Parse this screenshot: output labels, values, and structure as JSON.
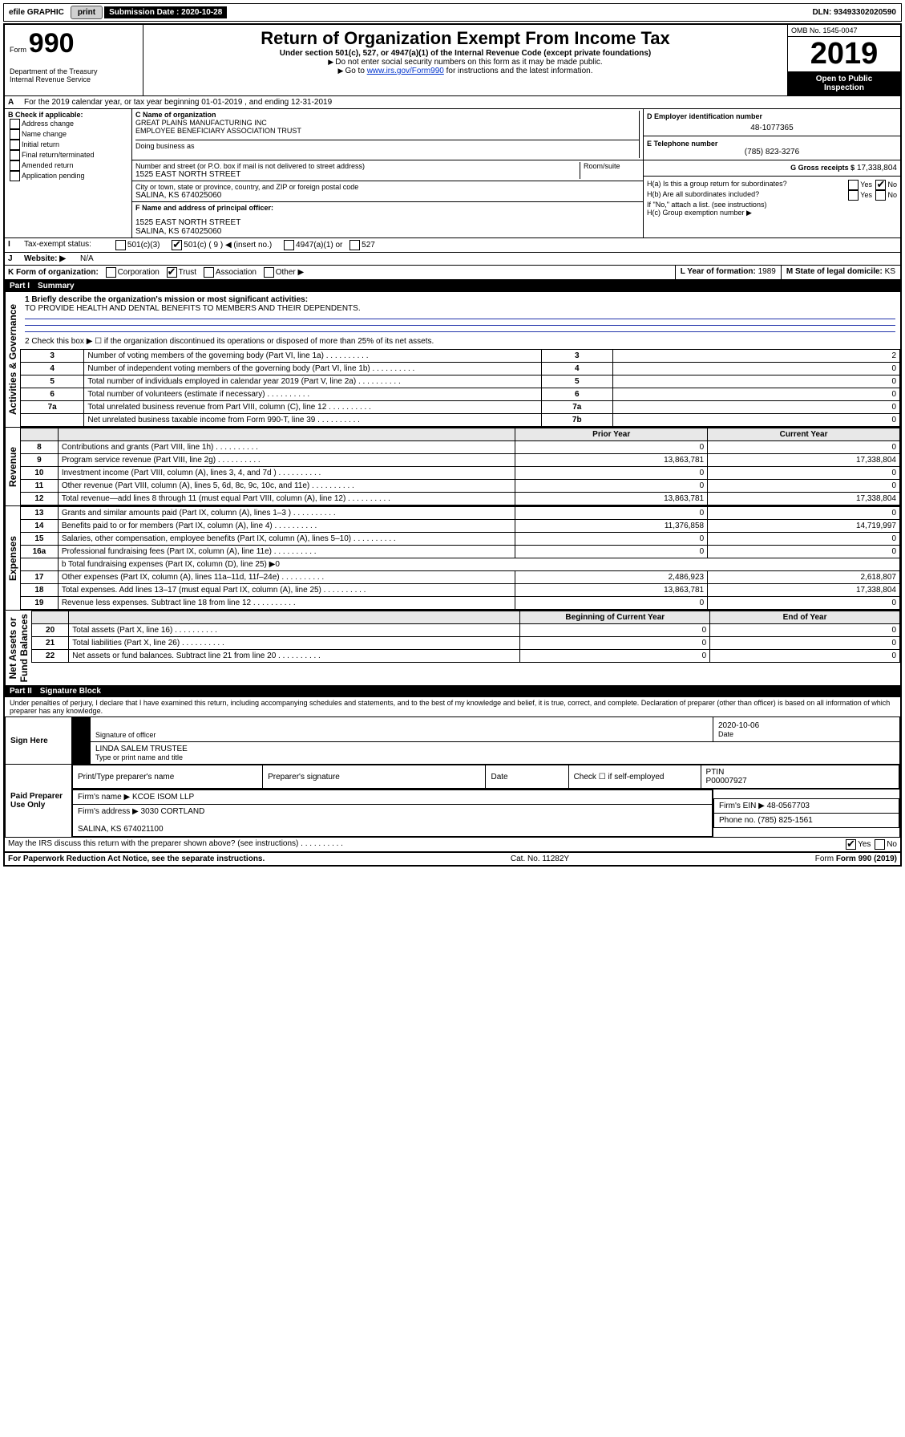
{
  "topbar": {
    "efile": "efile GRAPHIC",
    "print": "print",
    "sub_label": "Submission Date :",
    "sub_date": "2020-10-28",
    "dln_label": "DLN:",
    "dln": "93493302020590"
  },
  "header": {
    "form_label": "Form",
    "form_no": "990",
    "dept": "Department of the Treasury\nInternal Revenue Service",
    "title": "Return of Organization Exempt From Income Tax",
    "sub1": "Under section 501(c), 527, or 4947(a)(1) of the Internal Revenue Code (except private foundations)",
    "sub2": "Do not enter social security numbers on this form as it may be made public.",
    "sub3_pre": "Go to ",
    "sub3_link": "www.irs.gov/Form990",
    "sub3_post": " for instructions and the latest information.",
    "omb": "OMB No. 1545-0047",
    "year": "2019",
    "open_text": "Open to Public\nInspection"
  },
  "periodA": "For the 2019 calendar year, or tax year beginning 01-01-2019   , and ending 12-31-2019",
  "boxB": {
    "label": "B Check if applicable:",
    "opts": [
      "Address change",
      "Name change",
      "Initial return",
      "Final return/terminated",
      "Amended return",
      "Application pending"
    ]
  },
  "boxC": {
    "name_label": "C Name of organization",
    "name": "GREAT PLAINS MANUFACTURING INC\nEMPLOYEE BENEFICIARY ASSOCIATION TRUST",
    "dba_label": "Doing business as",
    "street_label": "Number and street (or P.O. box if mail is not delivered to street address)",
    "room_label": "Room/suite",
    "street": "1525 EAST NORTH STREET",
    "city_label": "City or town, state or province, country, and ZIP or foreign postal code",
    "city": "SALINA, KS  674025060",
    "f_label": "F Name and address of principal officer:",
    "f_addr": "1525 EAST NORTH STREET\nSALINA, KS  674025060"
  },
  "boxD": {
    "label": "D Employer identification number",
    "ein": "48-1077365"
  },
  "boxE": {
    "label": "E Telephone number",
    "phone": "(785) 823-3276"
  },
  "boxG": {
    "label": "G Gross receipts $",
    "amount": "17,338,804"
  },
  "boxH": {
    "a_label": "H(a)  Is this a group return for subordinates?",
    "b_label": "H(b)  Are all subordinates included?",
    "b_note": "If \"No,\" attach a list. (see instructions)",
    "c_label": "H(c)  Group exemption number ▶"
  },
  "lineI": {
    "label": "Tax-exempt status:",
    "opts": [
      "501(c)(3)",
      "501(c) ( 9 ) ◀ (insert no.)",
      "4947(a)(1) or",
      "527"
    ],
    "checked_index": 1
  },
  "lineJ": {
    "label": "Website: ▶",
    "value": "N/A"
  },
  "lineK": {
    "label": "K Form of organization:",
    "opts": [
      "Corporation",
      "Trust",
      "Association",
      "Other ▶"
    ],
    "checked_index": 1
  },
  "lineL": {
    "label": "L Year of formation:",
    "value": "1989"
  },
  "lineM": {
    "label": "M State of legal domicile:",
    "value": "KS"
  },
  "part1": {
    "header_no": "Part I",
    "header_title": "Summary",
    "q1_label": "1  Briefly describe the organization's mission or most significant activities:",
    "q1_text": "TO PROVIDE HEALTH AND DENTAL BENEFITS TO MEMBERS AND THEIR DEPENDENTS.",
    "q2": "2   Check this box ▶ ☐  if the organization discontinued its operations or disposed of more than 25% of its net assets.",
    "gov_rows": [
      {
        "n": "3",
        "t": "Number of voting members of the governing body (Part VI, line 1a)",
        "box": "3",
        "v": "2"
      },
      {
        "n": "4",
        "t": "Number of independent voting members of the governing body (Part VI, line 1b)",
        "box": "4",
        "v": "0"
      },
      {
        "n": "5",
        "t": "Total number of individuals employed in calendar year 2019 (Part V, line 2a)",
        "box": "5",
        "v": "0"
      },
      {
        "n": "6",
        "t": "Total number of volunteers (estimate if necessary)",
        "box": "6",
        "v": "0"
      },
      {
        "n": "7a",
        "t": "Total unrelated business revenue from Part VIII, column (C), line 12",
        "box": "7a",
        "v": "0"
      },
      {
        "n": "",
        "t": "Net unrelated business taxable income from Form 990-T, line 39",
        "box": "7b",
        "v": "0"
      }
    ],
    "col_headers": {
      "prior": "Prior Year",
      "current": "Current Year"
    },
    "revenue_rows": [
      {
        "n": "8",
        "t": "Contributions and grants (Part VIII, line 1h)",
        "p": "0",
        "c": "0"
      },
      {
        "n": "9",
        "t": "Program service revenue (Part VIII, line 2g)",
        "p": "13,863,781",
        "c": "17,338,804"
      },
      {
        "n": "10",
        "t": "Investment income (Part VIII, column (A), lines 3, 4, and 7d )",
        "p": "0",
        "c": "0"
      },
      {
        "n": "11",
        "t": "Other revenue (Part VIII, column (A), lines 5, 6d, 8c, 9c, 10c, and 11e)",
        "p": "0",
        "c": "0"
      },
      {
        "n": "12",
        "t": "Total revenue—add lines 8 through 11 (must equal Part VIII, column (A), line 12)",
        "p": "13,863,781",
        "c": "17,338,804"
      }
    ],
    "expense_rows": [
      {
        "n": "13",
        "t": "Grants and similar amounts paid (Part IX, column (A), lines 1–3 )",
        "p": "0",
        "c": "0"
      },
      {
        "n": "14",
        "t": "Benefits paid to or for members (Part IX, column (A), line 4)",
        "p": "11,376,858",
        "c": "14,719,997"
      },
      {
        "n": "15",
        "t": "Salaries, other compensation, employee benefits (Part IX, column (A), lines 5–10)",
        "p": "0",
        "c": "0"
      },
      {
        "n": "16a",
        "t": "Professional fundraising fees (Part IX, column (A), line 11e)",
        "p": "0",
        "c": "0"
      }
    ],
    "line16b": "b   Total fundraising expenses (Part IX, column (D), line 25) ▶0",
    "expense_rows2": [
      {
        "n": "17",
        "t": "Other expenses (Part IX, column (A), lines 11a–11d, 11f–24e)",
        "p": "2,486,923",
        "c": "2,618,807"
      },
      {
        "n": "18",
        "t": "Total expenses. Add lines 13–17 (must equal Part IX, column (A), line 25)",
        "p": "13,863,781",
        "c": "17,338,804"
      },
      {
        "n": "19",
        "t": "Revenue less expenses. Subtract line 18 from line 12",
        "p": "0",
        "c": "0"
      }
    ],
    "net_headers": {
      "beg": "Beginning of Current Year",
      "end": "End of Year"
    },
    "net_rows": [
      {
        "n": "20",
        "t": "Total assets (Part X, line 16)",
        "p": "0",
        "c": "0"
      },
      {
        "n": "21",
        "t": "Total liabilities (Part X, line 26)",
        "p": "0",
        "c": "0"
      },
      {
        "n": "22",
        "t": "Net assets or fund balances. Subtract line 21 from line 20",
        "p": "0",
        "c": "0"
      }
    ],
    "vert_labels": {
      "gov": "Activities & Governance",
      "rev": "Revenue",
      "exp": "Expenses",
      "net": "Net Assets or\nFund Balances"
    }
  },
  "part2": {
    "header_no": "Part II",
    "header_title": "Signature Block",
    "perjury": "Under penalties of perjury, I declare that I have examined this return, including accompanying schedules and statements, and to the best of my knowledge and belief, it is true, correct, and complete. Declaration of preparer (other than officer) is based on all information of which preparer has any knowledge.",
    "sign_here": "Sign Here",
    "sig_officer": "Signature of officer",
    "sig_date_label": "Date",
    "sig_date": "2020-10-06",
    "officer_name": "LINDA SALEM  TRUSTEE",
    "type_name": "Type or print name and title",
    "paid_label": "Paid Preparer Use Only",
    "prep_name_label": "Print/Type preparer's name",
    "prep_sig_label": "Preparer's signature",
    "prep_date_label": "Date",
    "check_if": "Check ☐ if self-employed",
    "ptin_label": "PTIN",
    "ptin": "P00007927",
    "firm_name_label": "Firm's name    ▶",
    "firm_name": "KCOE ISOM LLP",
    "firm_ein_label": "Firm's EIN ▶",
    "firm_ein": "48-0567703",
    "firm_addr_label": "Firm's address ▶",
    "firm_addr": "3030 CORTLAND\n\nSALINA, KS  674021100",
    "firm_phone_label": "Phone no.",
    "firm_phone": "(785) 825-1561",
    "discuss": "May the IRS discuss this return with the preparer shown above? (see instructions)"
  },
  "footer": {
    "pra": "For Paperwork Reduction Act Notice, see the separate instructions.",
    "cat": "Cat. No. 11282Y",
    "form": "Form 990 (2019)"
  },
  "yes": "Yes",
  "no": "No"
}
